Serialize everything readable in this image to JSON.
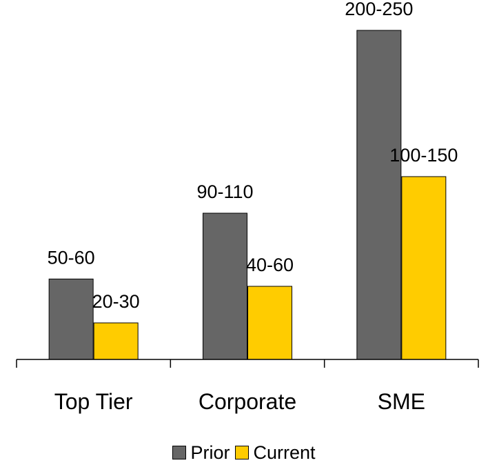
{
  "chart_data": {
    "type": "bar",
    "categories": [
      "Top Tier",
      "Corporate",
      "SME"
    ],
    "series": [
      {
        "name": "Prior",
        "values": [
          55,
          100,
          225
        ],
        "labels": [
          "50-60",
          "90-110",
          "200-250"
        ]
      },
      {
        "name": "Current",
        "values": [
          25,
          50,
          125
        ],
        "labels": [
          "20-30",
          "40-60",
          "100-150"
        ]
      }
    ],
    "colors": {
      "Prior": "#666666",
      "Current": "#ffcc00"
    },
    "legend": "bottom",
    "ylim": [
      0,
      225
    ],
    "grid": false
  }
}
